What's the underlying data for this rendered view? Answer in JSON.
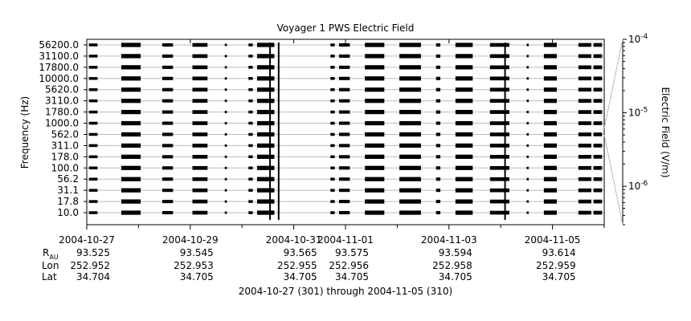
{
  "chart_data": {
    "type": "heatmap",
    "title": "Voyager 1 PWS Electric Field",
    "ylabel": "Frequency (Hz)",
    "colorbar_label": "Electric Field (V/m)",
    "colorbar_ticks": [
      {
        "base": "10",
        "exp": "-4",
        "value": 0.0001
      },
      {
        "base": "10",
        "exp": "-5",
        "value": 1e-05
      },
      {
        "base": "10",
        "exp": "-6",
        "value": 1e-06
      }
    ],
    "colorbar_range": [
      3e-07,
      0.0001
    ],
    "colorbar_scale": "log",
    "x_range": [
      "2004-10-27",
      "2004-11-06"
    ],
    "y_channels_hz": [
      10.0,
      17.8,
      31.1,
      56.2,
      100.0,
      178.0,
      311.0,
      562.0,
      1000.0,
      1780.0,
      3110.0,
      5620.0,
      10000.0,
      17800.0,
      31100.0,
      56200.0
    ],
    "y_tick_labels": [
      "10.0",
      "17.8",
      "31.1",
      "56.2",
      "100.0",
      "178.0",
      "311.0",
      "562.0",
      "1000.0",
      "1780.0",
      "3110.0",
      "5620.0",
      "10000.0",
      "17800.0",
      "31100.0",
      "56200.0"
    ],
    "row_labels": [
      "R_AU",
      "Lon",
      "Lat"
    ],
    "x_ticks": [
      {
        "date": "2004-10-27",
        "label": "2004-10-27",
        "rau": "93.525",
        "lon": "252.952",
        "lat": "34.704"
      },
      {
        "date": "2004-10-29",
        "label": "2004-10-29",
        "rau": "93.545",
        "lon": "252.953",
        "lat": "34.705"
      },
      {
        "date": "2004-10-31",
        "label": "2004-10-31",
        "rau": "93.565",
        "lon": "252.955",
        "lat": "34.705"
      },
      {
        "date": "2004-11-01",
        "label": "2004-11-01",
        "rau": "93.575",
        "lon": "252.956",
        "lat": "34.705"
      },
      {
        "date": "2004-11-03",
        "label": "2004-11-03",
        "rau": "93.594",
        "lon": "252.958",
        "lat": "34.705"
      },
      {
        "date": "2004-11-05",
        "label": "2004-11-05",
        "rau": "93.614",
        "lon": "252.959",
        "lat": "34.705"
      }
    ],
    "minor_x_ticks": [
      "2004-10-28",
      "2004-10-30",
      "2004-11-02",
      "2004-11-04",
      "2004-11-06"
    ],
    "data_segments": [
      {
        "start": "2004-10-27T01:00",
        "end": "2004-10-27T05:00",
        "level": 0.6
      },
      {
        "start": "2004-10-27T16:00",
        "end": "2004-10-28T01:00",
        "level": 0.9
      },
      {
        "start": "2004-10-28T11:00",
        "end": "2004-10-28T16:00",
        "level": 0.7
      },
      {
        "start": "2004-10-29T01:00",
        "end": "2004-10-29T08:00",
        "level": 0.8
      },
      {
        "start": "2004-10-29T16:00",
        "end": "2004-10-29T17:00",
        "level": 0.5
      },
      {
        "start": "2004-10-30T03:00",
        "end": "2004-10-30T05:00",
        "level": 0.6
      },
      {
        "start": "2004-10-30T07:00",
        "end": "2004-10-30T15:00",
        "level": 0.9
      },
      {
        "start": "2004-10-31T17:00",
        "end": "2004-10-31T19:00",
        "level": 0.6
      },
      {
        "start": "2004-10-31T21:00",
        "end": "2004-11-01T02:00",
        "level": 0.7
      },
      {
        "start": "2004-11-01T09:00",
        "end": "2004-11-01T18:00",
        "level": 0.9
      },
      {
        "start": "2004-11-02T01:00",
        "end": "2004-11-02T11:00",
        "level": 0.9
      },
      {
        "start": "2004-11-02T18:00",
        "end": "2004-11-02T20:00",
        "level": 0.7
      },
      {
        "start": "2004-11-03T03:00",
        "end": "2004-11-03T11:00",
        "level": 0.9
      },
      {
        "start": "2004-11-03T19:00",
        "end": "2004-11-04T04:00",
        "level": 0.8
      },
      {
        "start": "2004-11-04T12:00",
        "end": "2004-11-04T13:00",
        "level": 0.5
      },
      {
        "start": "2004-11-04T20:00",
        "end": "2004-11-05T02:00",
        "level": 0.9
      },
      {
        "start": "2004-11-05T12:00",
        "end": "2004-11-05T18:00",
        "level": 0.8
      },
      {
        "start": "2004-11-05T19:00",
        "end": "2004-11-05T23:00",
        "level": 0.8
      }
    ],
    "spikes": [
      "2004-10-30T13:00",
      "2004-10-30T17:00",
      "2004-11-04T02:00"
    ],
    "x_caption": "2004-10-27 (301) through 2004-11-05 (310)"
  },
  "colors": {
    "data": "#000000",
    "frame": "#000000",
    "grid": "#bbbbbb",
    "background": "#ffffff"
  }
}
